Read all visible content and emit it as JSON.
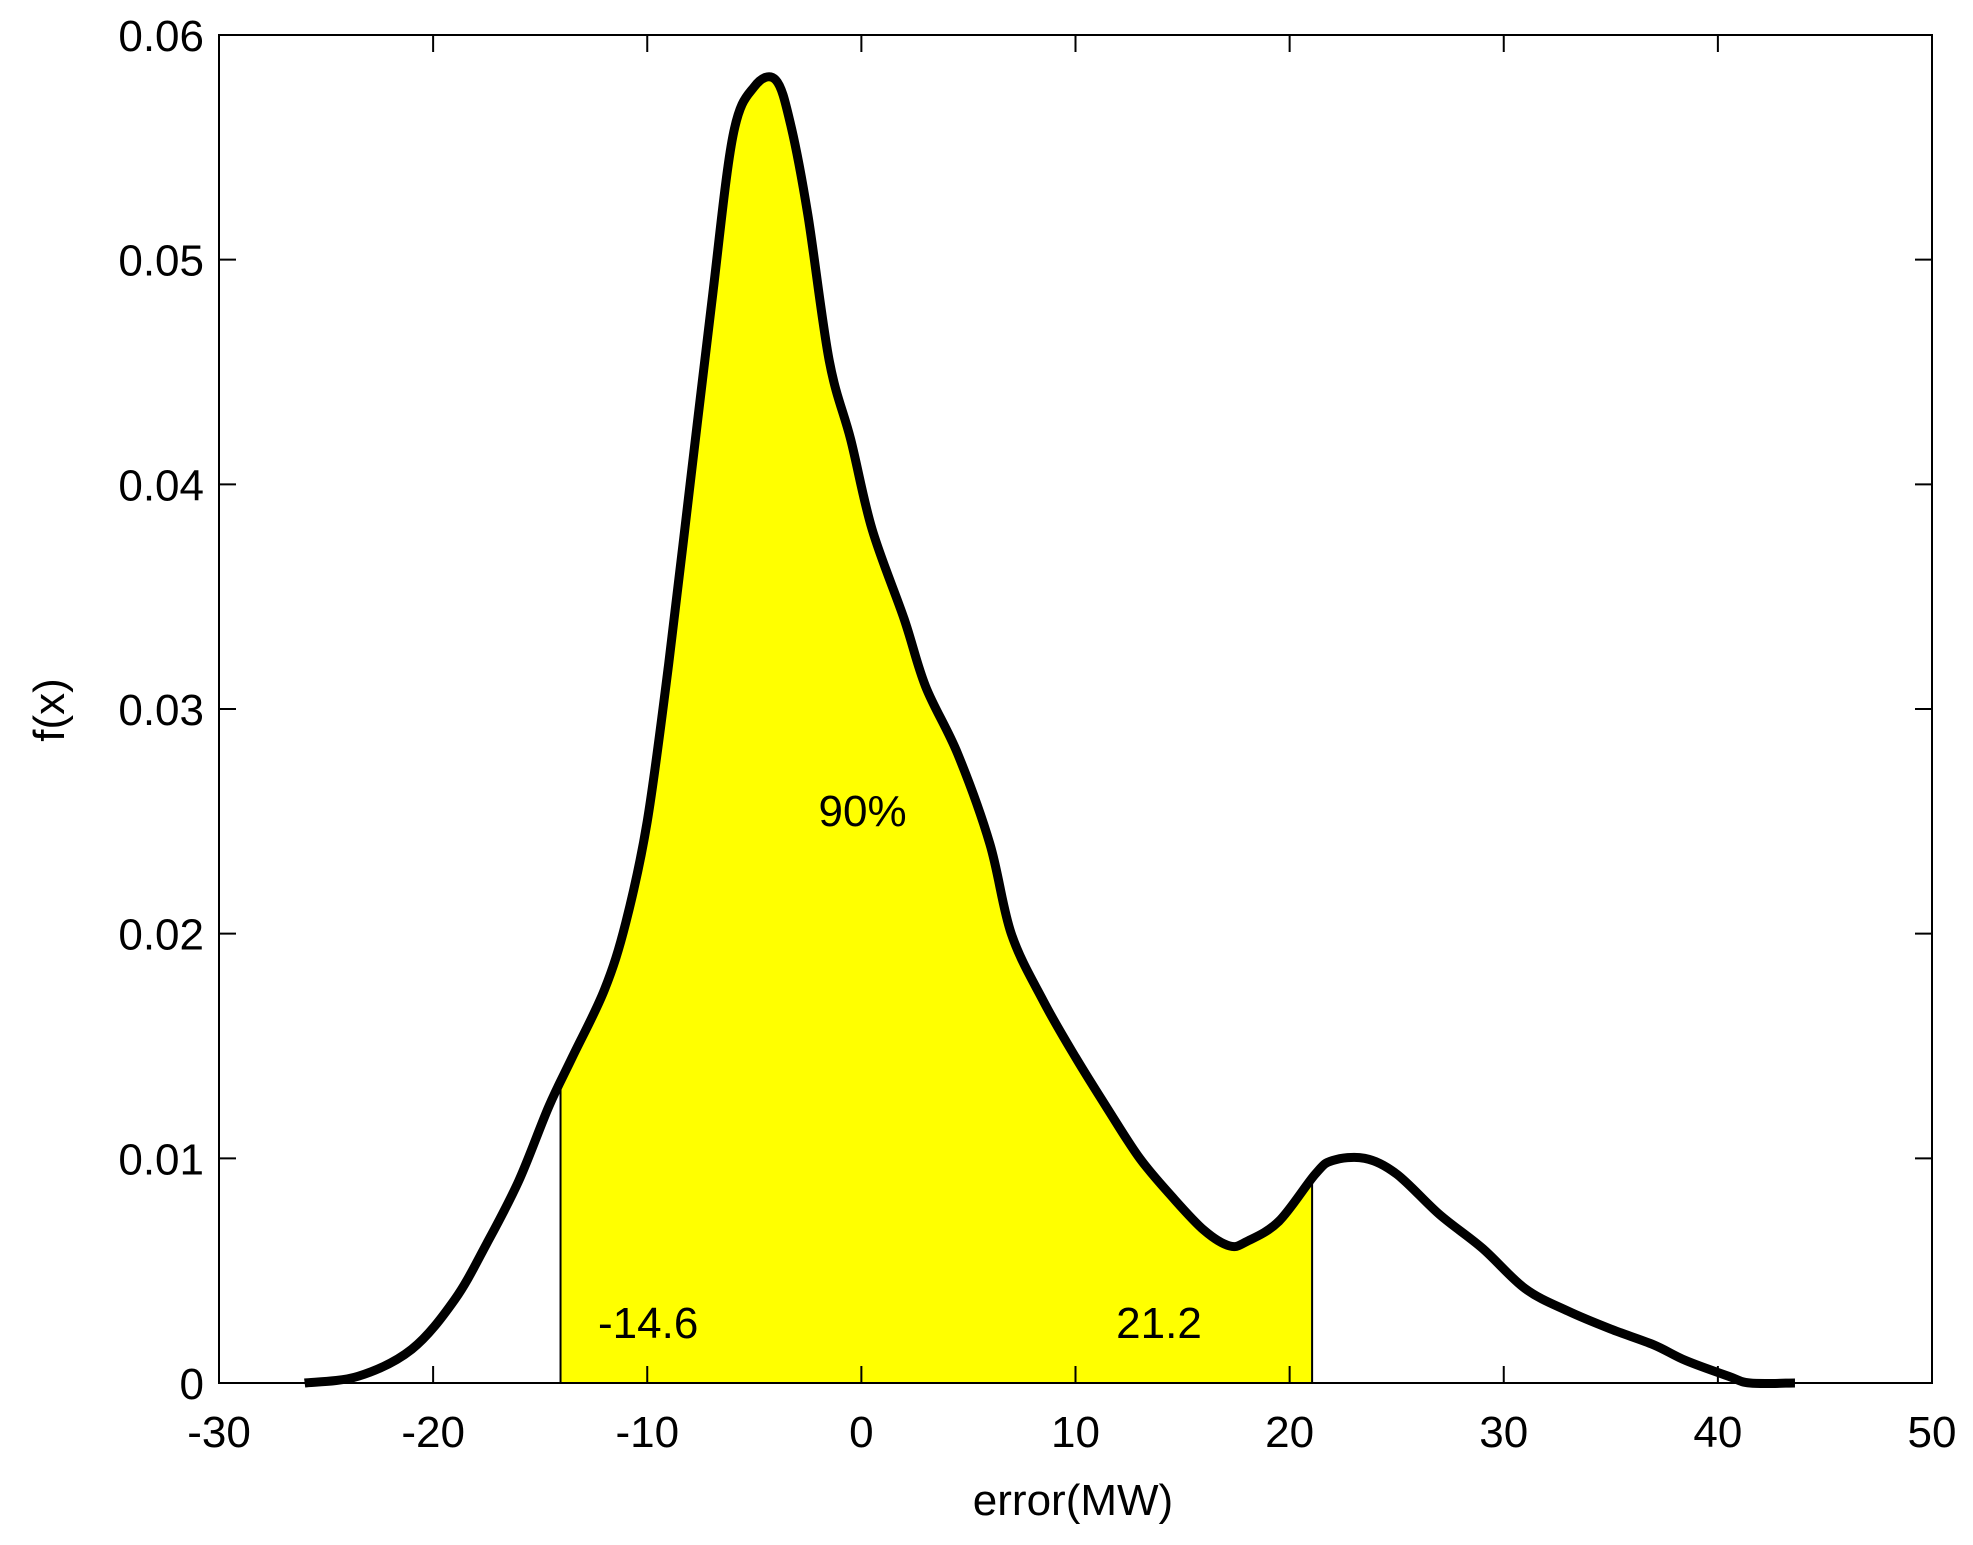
{
  "chart_data": {
    "type": "area",
    "title": "",
    "xlabel": "error(MW)",
    "ylabel": "f(x)",
    "xlim": [
      -30,
      50
    ],
    "ylim": [
      0,
      0.06
    ],
    "grid": false,
    "legend": null,
    "xticks": [
      -30,
      -20,
      -10,
      0,
      10,
      20,
      30,
      40,
      50
    ],
    "xtick_labels": [
      "-30",
      "-20",
      "-10",
      "0",
      "10",
      "20",
      "30",
      "40",
      "50"
    ],
    "yticks": [
      0,
      0.01,
      0.02,
      0.03,
      0.04,
      0.05,
      0.06
    ],
    "ytick_labels": [
      "0",
      "0.01",
      "0.02",
      "0.03",
      "0.04",
      "0.05",
      "0.06"
    ],
    "series": [
      {
        "name": "f(x)",
        "color": "#000000",
        "x": [
          -26,
          -23.5,
          -21,
          -19,
          -17.5,
          -16,
          -14.6,
          -13.5,
          -12,
          -11,
          -10,
          -9,
          -8,
          -7,
          -6,
          -5,
          -4,
          -3.3,
          -2.5,
          -1.5,
          -0.5,
          0.5,
          2,
          3,
          4.5,
          6,
          7,
          8.5,
          10,
          11.5,
          13,
          14.5,
          16,
          17.2,
          18,
          19.5,
          21.2,
          22,
          23.5,
          25,
          27,
          29,
          31,
          33,
          35,
          37,
          38.5,
          40.5,
          41.5,
          43.6
        ],
        "values": [
          0,
          0.0003,
          0.0015,
          0.0037,
          0.0062,
          0.009,
          0.0123,
          0.0145,
          0.0175,
          0.0205,
          0.025,
          0.032,
          0.04,
          0.048,
          0.0555,
          0.0577,
          0.058,
          0.056,
          0.052,
          0.0455,
          0.042,
          0.038,
          0.034,
          0.031,
          0.028,
          0.024,
          0.02,
          0.017,
          0.0145,
          0.0122,
          0.01,
          0.0083,
          0.0068,
          0.0061,
          0.0063,
          0.0072,
          0.0093,
          0.0099,
          0.01,
          0.0093,
          0.0075,
          0.006,
          0.0042,
          0.0032,
          0.0024,
          0.0017,
          0.001,
          0.0003,
          0,
          0
        ]
      }
    ],
    "shaded_region": {
      "x_start": -14.6,
      "x_end": 21.2,
      "color": "#FFFF00",
      "label": "90%"
    },
    "annotations": [
      {
        "text": "90%",
        "x": -2.0,
        "y": 0.0248
      },
      {
        "text": "-14.6",
        "x": -12.3,
        "y": 0.002
      },
      {
        "text": "21.2",
        "x": 11.9,
        "y": 0.002
      }
    ]
  }
}
